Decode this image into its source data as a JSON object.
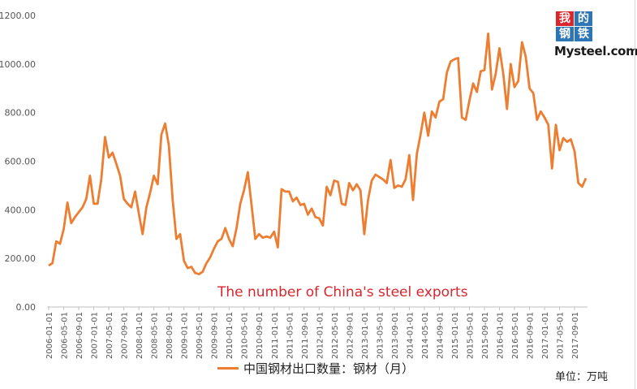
{
  "chart_data": {
    "type": "line",
    "legend": "中国钢材出口数量：钢材（月）",
    "annotation": "The number of China's steel exports",
    "unit_label": "单位：万吨",
    "y_ticks": [
      "0.00",
      "200.00",
      "400.00",
      "600.00",
      "800.00",
      "1000.00",
      "1200.00"
    ],
    "ylim": [
      0,
      1200
    ],
    "x_ticks": [
      "2006-01-01",
      "2006-05-01",
      "2006-09-01",
      "2007-01-01",
      "2007-05-01",
      "2007-09-01",
      "2008-01-01",
      "2008-05-01",
      "2008-09-01",
      "2009-01-01",
      "2009-05-01",
      "2009-09-01",
      "2010-01-01",
      "2010-05-01",
      "2010-09-01",
      "2011-01-01",
      "2011-05-01",
      "2011-09-01",
      "2012-01-01",
      "2012-05-01",
      "2012-09-01",
      "2013-01-01",
      "2013-05-01",
      "2013-09-01",
      "2014-01-01",
      "2014-05-01",
      "2014-09-01",
      "2015-01-01",
      "2015-05-01",
      "2015-09-01",
      "2016-01-01",
      "2016-05-01",
      "2016-09-01",
      "2017-01-01",
      "2017-05-01",
      "2017-09-01"
    ],
    "series": [
      {
        "color": "#ed7d31",
        "values": [
          170,
          180,
          270,
          260,
          320,
          430,
          345,
          370,
          390,
          410,
          445,
          540,
          425,
          425,
          525,
          700,
          615,
          635,
          590,
          540,
          445,
          425,
          410,
          475,
          385,
          300,
          410,
          470,
          540,
          505,
          710,
          755,
          665,
          440,
          280,
          300,
          190,
          160,
          165,
          140,
          135,
          145,
          180,
          205,
          240,
          270,
          280,
          325,
          280,
          250,
          325,
          425,
          480,
          555,
          420,
          280,
          300,
          285,
          290,
          285,
          310,
          245,
          485,
          475,
          475,
          435,
          450,
          420,
          425,
          380,
          405,
          370,
          365,
          335,
          495,
          460,
          520,
          515,
          425,
          420,
          510,
          480,
          505,
          480,
          300,
          440,
          520,
          545,
          535,
          525,
          510,
          605,
          490,
          500,
          495,
          525,
          625,
          440,
          630,
          710,
          800,
          705,
          805,
          780,
          845,
          855,
          965,
          1010,
          1020,
          1025,
          780,
          770,
          850,
          920,
          885,
          970,
          975,
          1125,
          895,
          960,
          1065,
          960,
          815,
          1000,
          905,
          930,
          1090,
          1030,
          900,
          880,
          770,
          805,
          780,
          750,
          570,
          750,
          645,
          695,
          680,
          690,
          640,
          510,
          495,
          530
        ]
      }
    ],
    "grid": false
  },
  "logo": {
    "chars": [
      "我",
      "的",
      "钢",
      "铁"
    ],
    "wordmark": "Mysteel.com",
    "cell_colors": [
      "#d9262e",
      "#2e75b6",
      "#2e75b6",
      "#2e75b6"
    ]
  }
}
